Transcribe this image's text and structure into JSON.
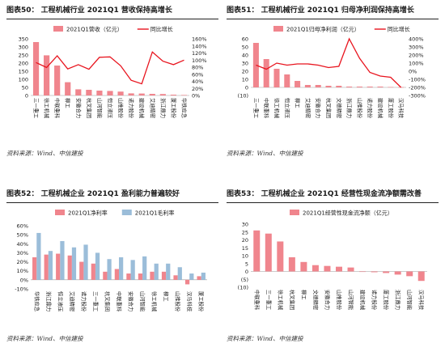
{
  "colors": {
    "bar": "#f0858d",
    "line": "#e8141e",
    "bar2": "#9bbdd9",
    "text": "#1a1a1a",
    "grid": "#cfcfcf"
  },
  "panels": [
    {
      "id": "p50",
      "title": "图表50： 工程机械行业 2021Q1 营收保持高增长",
      "source": "资料来源：Wind、中信建投"
    },
    {
      "id": "p51",
      "title": "图表51： 工程机械行业 2021Q1 归母净利润保持高增长",
      "source": "资料来源：Wind、中信建投"
    },
    {
      "id": "p52",
      "title": "图表52： 工程机械企业 2021Q1 盈利能力普遍较好",
      "source": "资料来源：Wind、中信建投"
    },
    {
      "id": "p53",
      "title": "图表53： 工程机械企业 2021Q1 经营性现金流净额需改善",
      "source": "资料来源：Wind、中信建投"
    }
  ],
  "chart_data": [
    {
      "id": "p50",
      "type": "bar+line",
      "categories": [
        "三一重工",
        "徐工机械",
        "中联重科",
        "柳工",
        "安徽合力",
        "杭叉集团",
        "山河智能",
        "恒立液压",
        "山推股份",
        "诺力股份",
        "建设机械",
        "艾迪精密",
        "浙江鼎力",
        "厦工股份",
        "华铁应急"
      ],
      "series": [
        {
          "name": "2021Q1营收（亿元）",
          "axis": "left",
          "kind": "bar",
          "values": [
            330,
            248,
            185,
            82,
            38,
            35,
            30,
            28,
            24,
            13,
            12,
            10,
            9,
            5,
            3
          ]
        },
        {
          "name": "同比增长",
          "axis": "right",
          "kind": "line",
          "values": [
            93,
            79,
            112,
            75,
            87,
            74,
            108,
            109,
            84,
            43,
            33,
            123,
            97,
            87,
            100
          ]
        }
      ],
      "yleft": {
        "min": 0,
        "max": 350,
        "ticks": [
          0,
          50,
          100,
          150,
          200,
          250,
          300,
          350
        ]
      },
      "yright": {
        "min": 0,
        "max": 160,
        "ticks": [
          0,
          20,
          40,
          60,
          80,
          100,
          120,
          140,
          160
        ],
        "suffix": "%"
      },
      "legend": "top"
    },
    {
      "id": "p51",
      "type": "bar+line",
      "categories": [
        "三一重工",
        "中联重科",
        "徐工机械",
        "恒立液压",
        "柳工",
        "艾迪精密",
        "安徽合力",
        "杭叉集团",
        "文德精密",
        "浙江鼎力",
        "山推股份",
        "诺力股份",
        "建设机械",
        "厦工股份",
        "汉马科技"
      ],
      "series": [
        {
          "name": "2021Q1归母净利润（亿元）",
          "axis": "left",
          "kind": "bar",
          "values": [
            55,
            35,
            23,
            16,
            8,
            3,
            3,
            2,
            2,
            1,
            1,
            1,
            1,
            0.5,
            0.3
          ]
        },
        {
          "name": "同比增长",
          "axis": "right",
          "kind": "line",
          "values": [
            75,
            25,
            100,
            75,
            90,
            90,
            75,
            45,
            60,
            400,
            160,
            -15,
            -60,
            -75,
            -200
          ]
        }
      ],
      "yleft": {
        "min": -10,
        "max": 60,
        "ticks": [
          -10,
          0,
          10,
          20,
          30,
          40,
          50,
          60
        ]
      },
      "yright": {
        "min": -300,
        "max": 400,
        "ticks": [
          -300,
          -200,
          -100,
          0,
          100,
          200,
          300,
          400
        ],
        "suffix": "%"
      },
      "legend": "top"
    },
    {
      "id": "p52",
      "type": "bar",
      "categories": [
        "华铁应急",
        "浙江鼎力",
        "恒立液压",
        "艾迪精密",
        "诺力股份",
        "三一重工",
        "杭叉集团",
        "中联重科",
        "安徽合力",
        "山河智能",
        "徐工机械",
        "柳工",
        "山推股份",
        "汉马科技",
        "厦工股份"
      ],
      "series": [
        {
          "name": "2021Q1净利率",
          "values": [
            25,
            28,
            29,
            27,
            20,
            18,
            9,
            12,
            7,
            7,
            9,
            9,
            5,
            -5,
            4
          ]
        },
        {
          "name": "2021Q1毛利率",
          "values": [
            52,
            32,
            43,
            36,
            39,
            30,
            23,
            25,
            22,
            26,
            18,
            18,
            14,
            7,
            8
          ]
        }
      ],
      "yleft": {
        "min": -10,
        "max": 60,
        "ticks": [
          -10,
          0,
          10,
          20,
          30,
          40,
          50,
          60
        ],
        "suffix": "%"
      },
      "legend": "top"
    },
    {
      "id": "p53",
      "type": "bar",
      "categories": [
        "中联重科",
        "三一重工",
        "徐工机械",
        "杭叉集团",
        "柳工",
        "文德精密",
        "安徽合力",
        "山推股份",
        "山河智能",
        "建设机械",
        "诺力股份",
        "厦工股份",
        "浙江鼎力",
        "山河智能",
        "汉马科技"
      ],
      "series": [
        {
          "name": "2021Q1经营性现金流净额（亿元）",
          "values": [
            26,
            24,
            19,
            9,
            6,
            4,
            3.5,
            3,
            2.5,
            -0.3,
            -0.5,
            -1,
            -2,
            -3,
            -6
          ]
        }
      ],
      "yleft": {
        "min": -10,
        "max": 30,
        "ticks": [
          -10,
          -5,
          0,
          5,
          10,
          15,
          20,
          25,
          30
        ]
      },
      "legend": "top"
    }
  ]
}
